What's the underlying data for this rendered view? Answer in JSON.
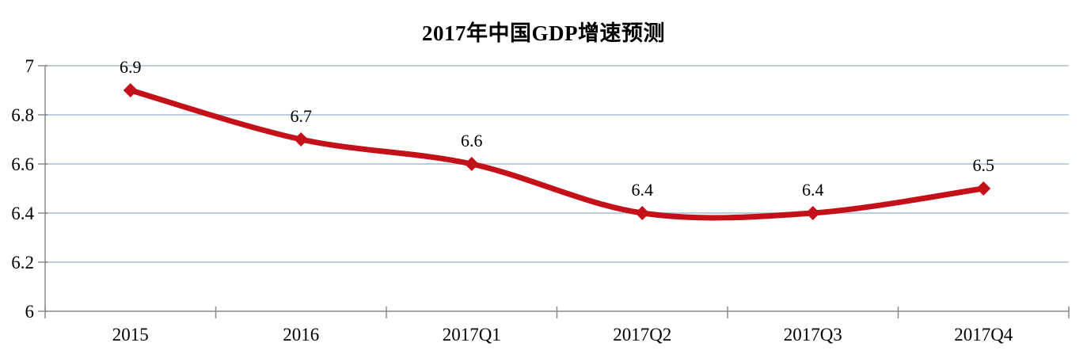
{
  "chart_data": {
    "type": "line",
    "title": "2017年中国GDP增速预测",
    "categories": [
      "2015",
      "2016",
      "2017Q1",
      "2017Q2",
      "2017Q3",
      "2017Q4"
    ],
    "values": [
      6.9,
      6.7,
      6.6,
      6.4,
      6.4,
      6.5
    ],
    "data_labels": [
      "6.9",
      "6.7",
      "6.6",
      "6.4",
      "6.4",
      "6.5"
    ],
    "ytick_labels": [
      "6",
      "6.2",
      "6.4",
      "6.6",
      "6.8",
      "7"
    ],
    "xlabel": "",
    "ylabel": "",
    "ylim": [
      6,
      7
    ],
    "ytick_step": 0.2,
    "grid": true,
    "legend_position": "none",
    "line_style": "smoothed",
    "marker": "diamond",
    "colors": {
      "line": "#c41119",
      "marker": "#c41119",
      "gridline": "#bccddf",
      "axis": "#8a8a8a",
      "text": "#000000",
      "background": "#ffffff"
    }
  }
}
